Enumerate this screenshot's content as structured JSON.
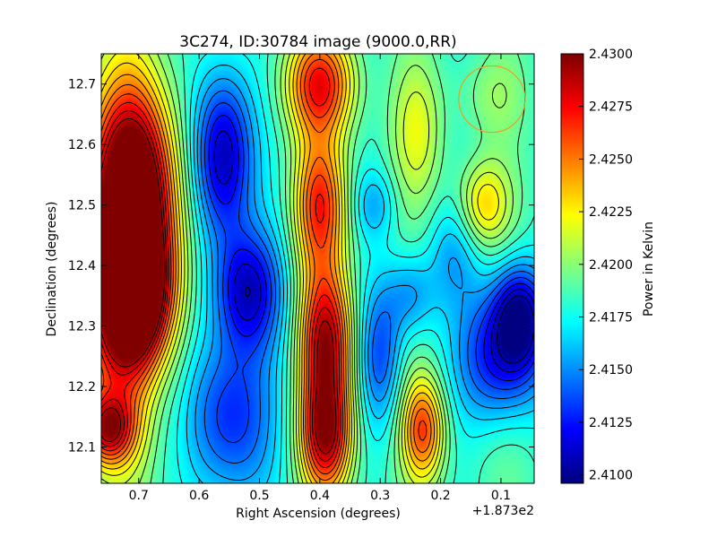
{
  "chart_data": {
    "type": "heatmap",
    "title": "3C274, ID:30784 image (9000.0,RR)",
    "xlabel": "Right Ascension (degrees)",
    "ylabel": "Declination (degrees)",
    "x_offset_label": "+1.873e2",
    "xlim": [
      0.762,
      0.045
    ],
    "ylim": [
      12.04,
      12.75
    ],
    "x_ticks": [
      {
        "value": 0.7,
        "label": "0.7"
      },
      {
        "value": 0.6,
        "label": "0.6"
      },
      {
        "value": 0.5,
        "label": "0.5"
      },
      {
        "value": 0.4,
        "label": "0.4"
      },
      {
        "value": 0.3,
        "label": "0.3"
      },
      {
        "value": 0.2,
        "label": "0.2"
      },
      {
        "value": 0.1,
        "label": "0.1"
      }
    ],
    "y_ticks": [
      {
        "value": 12.1,
        "label": "12.1"
      },
      {
        "value": 12.2,
        "label": "12.2"
      },
      {
        "value": 12.3,
        "label": "12.3"
      },
      {
        "value": 12.4,
        "label": "12.4"
      },
      {
        "value": 12.5,
        "label": "12.5"
      },
      {
        "value": 12.6,
        "label": "12.6"
      },
      {
        "value": 12.7,
        "label": "12.7"
      }
    ],
    "colorbar": {
      "label": "Power in Kelvin",
      "colormap": "jet",
      "range": [
        2.4096,
        2.43
      ],
      "ticks": [
        {
          "value": 2.41,
          "label": "2.4100"
        },
        {
          "value": 2.4125,
          "label": "2.4125"
        },
        {
          "value": 2.415,
          "label": "2.4150"
        },
        {
          "value": 2.4175,
          "label": "2.4175"
        },
        {
          "value": 2.42,
          "label": "2.4200"
        },
        {
          "value": 2.4225,
          "label": "2.4225"
        },
        {
          "value": 2.425,
          "label": "2.4250"
        },
        {
          "value": 2.4275,
          "label": "2.4275"
        },
        {
          "value": 2.43,
          "label": "2.4300"
        }
      ]
    },
    "features": [
      {
        "ra": 0.7,
        "dec": 12.52,
        "value": 2.4292,
        "sigma_ra": 0.045,
        "sigma_dec": 0.12
      },
      {
        "ra": 0.7,
        "dec": 12.35,
        "value": 2.4294,
        "sigma_ra": 0.04,
        "sigma_dec": 0.08
      },
      {
        "ra": 0.74,
        "dec": 12.4,
        "value": 2.4275,
        "sigma_ra": 0.05,
        "sigma_dec": 0.2
      },
      {
        "ra": 0.56,
        "dec": 12.58,
        "value": 2.4102,
        "sigma_ra": 0.035,
        "sigma_dec": 0.1
      },
      {
        "ra": 0.52,
        "dec": 12.36,
        "value": 2.4115,
        "sigma_ra": 0.04,
        "sigma_dec": 0.07
      },
      {
        "ra": 0.55,
        "dec": 12.15,
        "value": 2.4125,
        "sigma_ra": 0.05,
        "sigma_dec": 0.1
      },
      {
        "ra": 0.39,
        "dec": 12.12,
        "value": 2.4288,
        "sigma_ra": 0.03,
        "sigma_dec": 0.07
      },
      {
        "ra": 0.39,
        "dec": 12.28,
        "value": 2.4285,
        "sigma_ra": 0.03,
        "sigma_dec": 0.08
      },
      {
        "ra": 0.4,
        "dec": 12.7,
        "value": 2.427,
        "sigma_ra": 0.04,
        "sigma_dec": 0.06
      },
      {
        "ra": 0.4,
        "dec": 12.5,
        "value": 2.4265,
        "sigma_ra": 0.03,
        "sigma_dec": 0.08
      },
      {
        "ra": 0.3,
        "dec": 12.25,
        "value": 2.414,
        "sigma_ra": 0.025,
        "sigma_dec": 0.08
      },
      {
        "ra": 0.31,
        "dec": 12.5,
        "value": 2.416,
        "sigma_ra": 0.025,
        "sigma_dec": 0.04
      },
      {
        "ra": 0.25,
        "dec": 12.35,
        "value": 2.415,
        "sigma_ra": 0.03,
        "sigma_dec": 0.05
      },
      {
        "ra": 0.23,
        "dec": 12.13,
        "value": 2.426,
        "sigma_ra": 0.025,
        "sigma_dec": 0.06
      },
      {
        "ra": 0.24,
        "dec": 12.62,
        "value": 2.4215,
        "sigma_ra": 0.03,
        "sigma_dec": 0.08
      },
      {
        "ra": 0.13,
        "dec": 12.5,
        "value": 2.4232,
        "sigma_ra": 0.03,
        "sigma_dec": 0.05
      },
      {
        "ra": 0.1,
        "dec": 12.25,
        "value": 2.412,
        "sigma_ra": 0.05,
        "sigma_dec": 0.08
      },
      {
        "ra": 0.07,
        "dec": 12.32,
        "value": 2.4118,
        "sigma_ra": 0.03,
        "sigma_dec": 0.06
      },
      {
        "ra": 0.12,
        "dec": 12.68,
        "value": 2.42,
        "sigma_ra": 0.04,
        "sigma_dec": 0.05
      },
      {
        "ra": 0.18,
        "dec": 12.42,
        "value": 2.416,
        "sigma_ra": 0.03,
        "sigma_dec": 0.06
      },
      {
        "ra": 0.1,
        "dec": 12.1,
        "value": 2.419,
        "sigma_ra": 0.05,
        "sigma_dec": 0.06
      },
      {
        "ra": 0.75,
        "dec": 12.13,
        "value": 2.4265,
        "sigma_ra": 0.03,
        "sigma_dec": 0.04
      },
      {
        "ra": 0.63,
        "dec": 12.3,
        "value": 2.419,
        "sigma_ra": 0.02,
        "sigma_dec": 0.25
      }
    ],
    "background_value": 2.4185,
    "contours": {
      "count": 20
    },
    "beam_marker": {
      "ra": 0.115,
      "dec": 12.675,
      "radius_ra": 0.055,
      "radius_dec": 0.055,
      "color": "#e8a020"
    },
    "grid": false,
    "legend": "none"
  }
}
